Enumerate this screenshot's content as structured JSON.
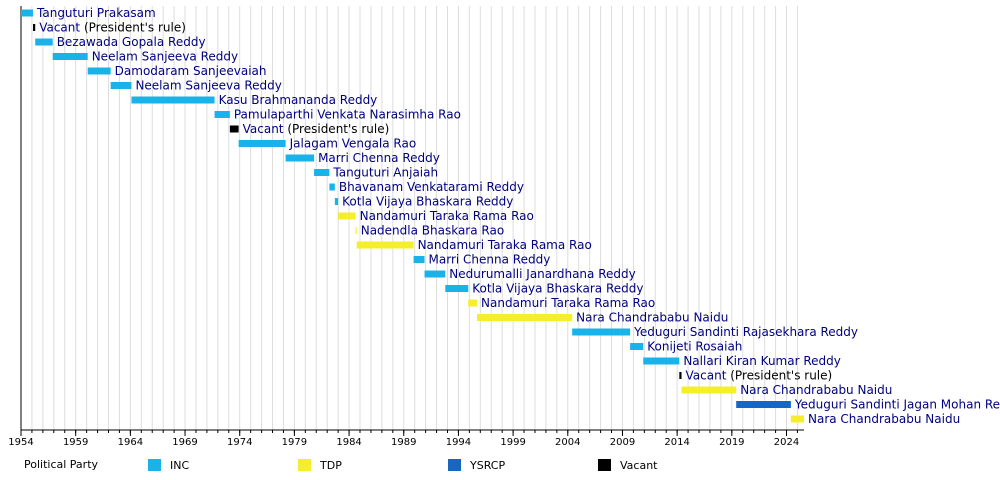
{
  "chart_data": {
    "type": "timeline",
    "xlim": [
      1954,
      2025.6
    ],
    "xticks": [
      1954,
      1959,
      1964,
      1969,
      1974,
      1979,
      1984,
      1989,
      1994,
      1999,
      2004,
      2009,
      2014,
      2019,
      2024
    ],
    "minor_xticks": [
      1954,
      1955,
      1956,
      1957,
      1958,
      1959,
      1960,
      1961,
      1962,
      1963,
      1964,
      1965,
      1966,
      1967,
      1968,
      1969,
      1970,
      1971,
      1972,
      1973,
      1974,
      1975,
      1976,
      1977,
      1978,
      1979,
      1980,
      1981,
      1982,
      1983,
      1984,
      1985,
      1986,
      1987,
      1988,
      1989,
      1990,
      1991,
      1992,
      1993,
      1994,
      1995,
      1996,
      1997,
      1998,
      1999,
      2000,
      2001,
      2002,
      2003,
      2004,
      2005,
      2006,
      2007,
      2008,
      2009,
      2010,
      2011,
      2012,
      2013,
      2014,
      2015,
      2016,
      2017,
      2018,
      2019,
      2020,
      2021,
      2022,
      2023,
      2024,
      2025
    ],
    "grid": true,
    "legend_title": "Political Party",
    "parties": [
      {
        "name": "INC",
        "color": "#19b3ea"
      },
      {
        "name": "TDP",
        "color": "#f5ee2a"
      },
      {
        "name": "YSRCP",
        "color": "#1766c4"
      },
      {
        "name": "Vacant",
        "color": "#000000"
      }
    ],
    "rows": [
      {
        "name": "Tanguturi Prakasam",
        "party": 0,
        "start": 1954,
        "end": 1955.1
      },
      {
        "name": "Vacant",
        "note": "(President's rule)",
        "party": 3,
        "start": 1955.1,
        "end": 1955.3
      },
      {
        "name": "Bezawada Gopala Reddy",
        "party": 0,
        "start": 1955.3,
        "end": 1956.9
      },
      {
        "name": "Neelam Sanjeeva Reddy",
        "party": 0,
        "start": 1956.9,
        "end": 1960.1
      },
      {
        "name": "Damodaram Sanjeevaiah",
        "party": 0,
        "start": 1960.1,
        "end": 1962.2
      },
      {
        "name": "Neelam Sanjeeva Reddy",
        "party": 0,
        "start": 1962.2,
        "end": 1964.1
      },
      {
        "name": "Kasu Brahmananda Reddy",
        "party": 0,
        "start": 1964.1,
        "end": 1971.7
      },
      {
        "name": "Pamulaparthi Venkata Narasimha Rao",
        "party": 0,
        "start": 1971.7,
        "end": 1973.1
      },
      {
        "name": "Vacant",
        "note": "(President's rule)",
        "party": 3,
        "start": 1973.1,
        "end": 1973.9
      },
      {
        "name": "Jalagam Vengala Rao",
        "party": 0,
        "start": 1973.9,
        "end": 1978.2
      },
      {
        "name": "Marri Chenna Reddy",
        "party": 0,
        "start": 1978.2,
        "end": 1980.8
      },
      {
        "name": "Tanguturi Anjaiah",
        "party": 0,
        "start": 1980.8,
        "end": 1982.2
      },
      {
        "name": "Bhavanam Venkatarami Reddy",
        "party": 0,
        "start": 1982.2,
        "end": 1982.7
      },
      {
        "name": "Kotla Vijaya Bhaskara Reddy",
        "party": 0,
        "start": 1982.7,
        "end": 1983.0
      },
      {
        "name": "Nandamuri Taraka Rama Rao",
        "party": 1,
        "start": 1983.0,
        "end": 1984.6
      },
      {
        "name": "Nadendla Bhaskara Rao",
        "party": 1,
        "start": 1984.6,
        "end": 1984.7
      },
      {
        "name": "Nandamuri Taraka Rama Rao",
        "party": 1,
        "start": 1984.7,
        "end": 1989.9
      },
      {
        "name": "Marri Chenna Reddy",
        "party": 0,
        "start": 1989.9,
        "end": 1990.9
      },
      {
        "name": "Nedurumalli Janardhana Reddy",
        "party": 0,
        "start": 1990.9,
        "end": 1992.8
      },
      {
        "name": "Kotla Vijaya Bhaskara Reddy",
        "party": 0,
        "start": 1992.8,
        "end": 1994.9
      },
      {
        "name": "Nandamuri Taraka Rama Rao",
        "party": 1,
        "start": 1994.9,
        "end": 1995.7
      },
      {
        "name": "Nara Chandrababu Naidu",
        "party": 1,
        "start": 1995.7,
        "end": 2004.4
      },
      {
        "name": "Yeduguri Sandinti Rajasekhara Reddy",
        "party": 0,
        "start": 2004.4,
        "end": 2009.7
      },
      {
        "name": "Konijeti Rosaiah",
        "party": 0,
        "start": 2009.7,
        "end": 2010.9
      },
      {
        "name": "Nallari Kiran Kumar Reddy",
        "party": 0,
        "start": 2010.9,
        "end": 2014.2
      },
      {
        "name": "Vacant",
        "note": "(President's rule)",
        "party": 3,
        "start": 2014.2,
        "end": 2014.4
      },
      {
        "name": "Nara Chandrababu Naidu",
        "party": 1,
        "start": 2014.4,
        "end": 2019.4
      },
      {
        "name": "Yeduguri Sandinti Jagan Mohan Re",
        "party": 2,
        "start": 2019.4,
        "end": 2024.4
      },
      {
        "name": "Nara Chandrababu Naidu",
        "party": 1,
        "start": 2024.4,
        "end": 2025.6
      }
    ]
  }
}
